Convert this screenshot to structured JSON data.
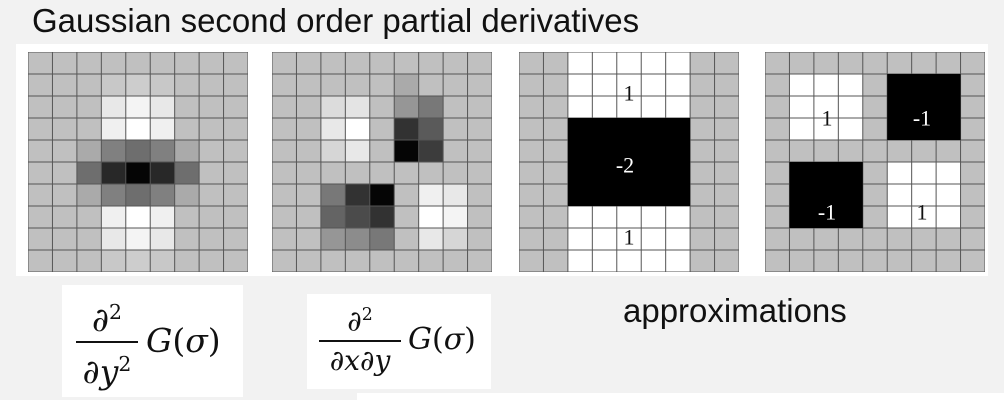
{
  "title": "Gaussian second order partial derivatives",
  "approx_label": "approximations",
  "colors": {
    "background": "#f2f2f2",
    "panel_gray": "#c0c0c0",
    "grid_line": "#555555",
    "white": "#ffffff",
    "black": "#000000"
  },
  "filters": [
    {
      "id": "dyy",
      "kind": "gaussian",
      "description_icon": "gaussian-dyy-filter",
      "cells": [
        [
          192,
          192,
          192,
          192,
          192,
          192,
          192,
          192,
          192
        ],
        [
          192,
          192,
          192,
          200,
          205,
          200,
          192,
          192,
          192
        ],
        [
          192,
          192,
          192,
          232,
          244,
          232,
          192,
          192,
          192
        ],
        [
          192,
          192,
          192,
          240,
          255,
          240,
          192,
          192,
          192
        ],
        [
          192,
          192,
          170,
          128,
          110,
          128,
          170,
          192,
          192
        ],
        [
          192,
          192,
          110,
          40,
          5,
          40,
          110,
          192,
          192
        ],
        [
          192,
          192,
          170,
          128,
          110,
          128,
          170,
          192,
          192
        ],
        [
          192,
          192,
          192,
          240,
          255,
          240,
          192,
          192,
          192
        ],
        [
          192,
          192,
          192,
          232,
          244,
          232,
          192,
          192,
          192
        ],
        [
          192,
          192,
          192,
          200,
          205,
          200,
          192,
          192,
          192
        ]
      ]
    },
    {
      "id": "dxy",
      "kind": "gaussian",
      "description_icon": "gaussian-dxy-filter",
      "cells": [
        [
          192,
          192,
          192,
          192,
          192,
          192,
          192,
          192,
          192
        ],
        [
          192,
          192,
          192,
          192,
          192,
          170,
          192,
          192,
          192
        ],
        [
          192,
          192,
          220,
          228,
          192,
          150,
          120,
          192,
          192
        ],
        [
          192,
          192,
          232,
          255,
          192,
          50,
          90,
          192,
          192
        ],
        [
          192,
          192,
          214,
          232,
          192,
          5,
          60,
          192,
          192
        ],
        [
          192,
          192,
          192,
          192,
          192,
          192,
          192,
          192,
          192
        ],
        [
          192,
          192,
          120,
          50,
          5,
          192,
          240,
          232,
          192
        ],
        [
          192,
          192,
          100,
          75,
          50,
          192,
          255,
          244,
          192
        ],
        [
          192,
          192,
          150,
          140,
          120,
          192,
          232,
          214,
          192
        ],
        [
          192,
          192,
          192,
          192,
          192,
          192,
          192,
          192,
          192
        ]
      ]
    }
  ],
  "approximations": [
    {
      "id": "box-dyy",
      "regions": [
        {
          "label": "1"
        },
        {
          "label": "-2"
        },
        {
          "label": "1"
        }
      ]
    },
    {
      "id": "box-dxy",
      "regions": [
        {
          "label": "1"
        },
        {
          "label": "-1"
        },
        {
          "label": "-1"
        },
        {
          "label": "1"
        }
      ]
    }
  ],
  "formulas": {
    "dyy": {
      "numerator": "∂",
      "numerator_exp": "2",
      "denominator": "∂y",
      "denominator_exp": "2",
      "function": "G",
      "argument": "σ"
    },
    "dxy": {
      "numerator": "∂",
      "numerator_exp": "2",
      "denominator": "∂x∂y",
      "denominator_exp": "",
      "function": "G",
      "argument": "σ"
    }
  }
}
